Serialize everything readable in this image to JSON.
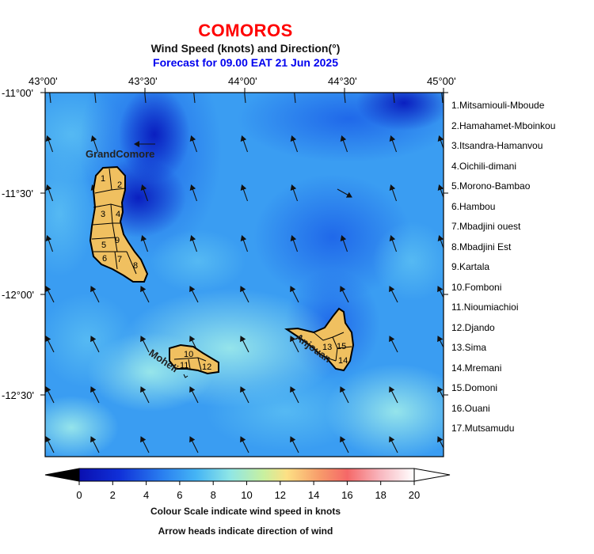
{
  "header": {
    "title": "COMOROS",
    "subtitle": "Wind Speed (knots) and Direction(°)",
    "forecast": "Forecast for  09.00 EAT 21 Jun 2025"
  },
  "map": {
    "lon_labels": [
      "43°00'",
      "43°30'",
      "44°00'",
      "44°30'",
      "45°00'"
    ],
    "lat_labels": [
      "-11°00'",
      "-11°30'",
      "-12°00'",
      "-12°30'"
    ],
    "lon_range": [
      43.0,
      45.0
    ],
    "lat_range": [
      -11.0,
      -12.8
    ],
    "island_labels": {
      "grand_comore": "GrandComore",
      "moheli": "Moheli",
      "anjouan": "Anjouan"
    },
    "background_colors": {
      "dark": "#0a2fc9",
      "mid": "#2e8ff0",
      "light": "#6ec8f5",
      "cyan": "#8fe6e8"
    },
    "land_color": "#f0c060",
    "wind_arrows": "arrow-icon field pointing mostly north-northwest"
  },
  "regions": [
    {
      "num": "1",
      "name": "Mitsamiouli-Mboude"
    },
    {
      "num": "2",
      "name": "Hamahamet-Mboinkou"
    },
    {
      "num": "3",
      "name": "Itsandra-Hamanvou"
    },
    {
      "num": "4",
      "name": "Oichili-dimani"
    },
    {
      "num": "5",
      "name": "Morono-Bambao"
    },
    {
      "num": "6",
      "name": "Hambou"
    },
    {
      "num": "7",
      "name": "Mbadjini ouest"
    },
    {
      "num": "8",
      "name": "Mbadjini Est"
    },
    {
      "num": "9",
      "name": "Kartala"
    },
    {
      "num": "10",
      "name": "Fomboni"
    },
    {
      "num": "11",
      "name": "Nioumiachioi"
    },
    {
      "num": "12",
      "name": "Djando"
    },
    {
      "num": "13",
      "name": "Sima"
    },
    {
      "num": "14",
      "name": "Mremani"
    },
    {
      "num": "15",
      "name": "Domoni"
    },
    {
      "num": "16",
      "name": "Ouani"
    },
    {
      "num": "17",
      "name": "Mutsamudu"
    }
  ],
  "legend_items": [
    "1.Mitsamiouli-Mboude",
    "2.Hamahamet-Mboinkou",
    "3.Itsandra-Hamanvou",
    "4.Oichili-dimani",
    "5.Morono-Bambao",
    "6.Hambou",
    "7.Mbadjini ouest",
    "8.Mbadjini Est",
    "9.Kartala",
    "10.Fomboni",
    "11.Nioumiachioi",
    "12.Djando",
    "13.Sima",
    "14.Mremani",
    "15.Domoni",
    "16.Ouani",
    "17.Mutsamudu"
  ],
  "colorbar": {
    "ticks": [
      "0",
      "2",
      "4",
      "6",
      "8",
      "10",
      "12",
      "14",
      "16",
      "18",
      "20"
    ],
    "min": 0,
    "max": 20,
    "colors": [
      "#000000",
      "#0a0fb0",
      "#1a55e8",
      "#35a7f5",
      "#7fe0f0",
      "#b8f0a0",
      "#fde084",
      "#f8a070",
      "#f66868",
      "#f8b0b8",
      "#ffffff"
    ]
  },
  "captions": {
    "line1": "Colour Scale indicate wind speed in knots",
    "line2": "Arrow heads indicate direction of wind"
  }
}
